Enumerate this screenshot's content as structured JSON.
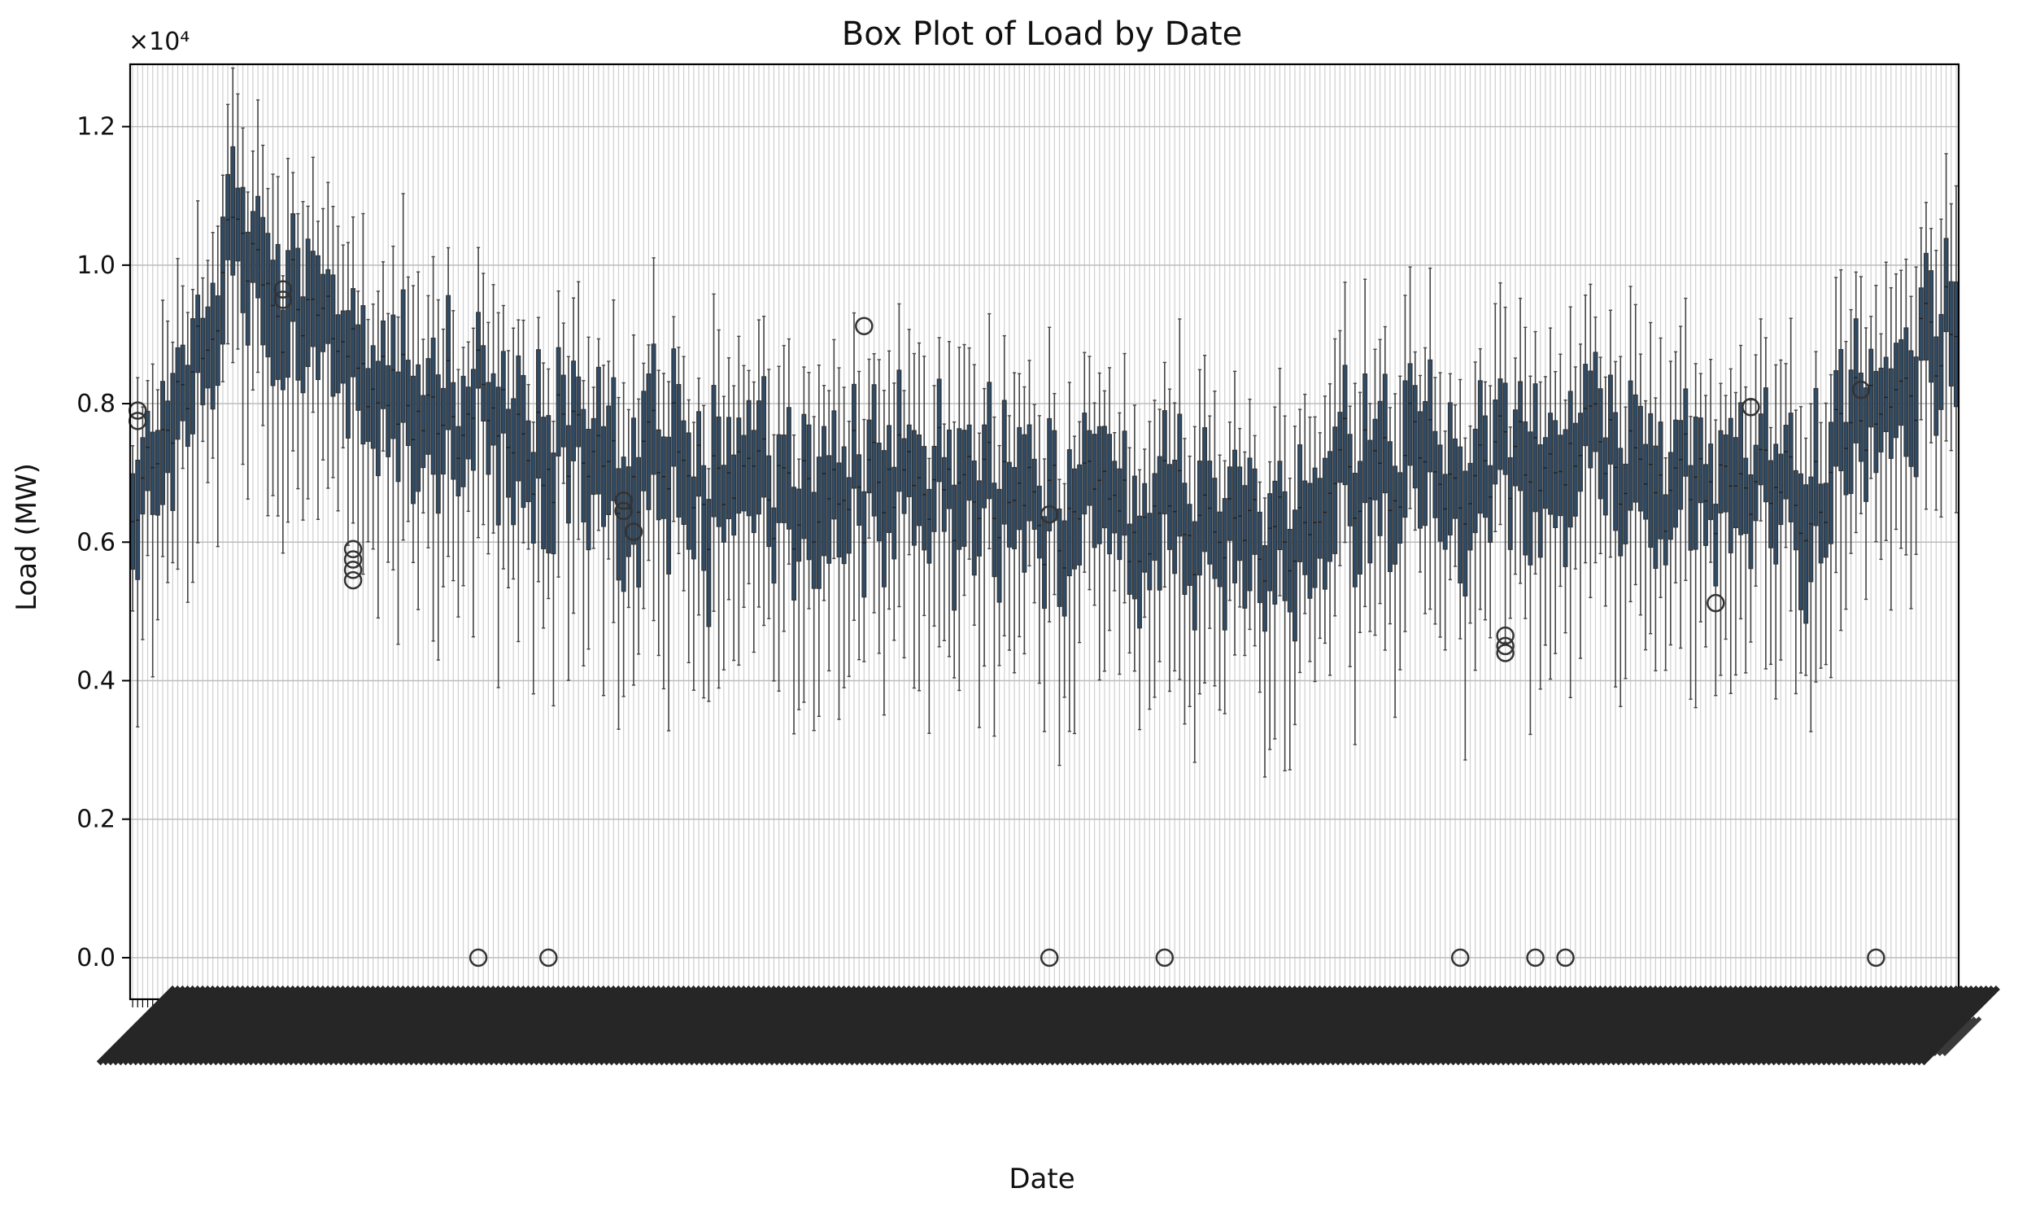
{
  "chart_data": {
    "type": "box",
    "title": "Box Plot of Load by Date",
    "xlabel": "Date",
    "ylabel": "Load (MW)",
    "y_multiplier": "×10⁴",
    "yticks": [
      0.0,
      0.2,
      0.4,
      0.6,
      0.8,
      1.0,
      1.2
    ],
    "ylim": [
      -0.06,
      1.29
    ],
    "grid": true,
    "box_color": "#2f4b66",
    "outlier_color": "#333333",
    "group_count": 365,
    "median_profile": [
      [
        0,
        0.63
      ],
      [
        6,
        0.75
      ],
      [
        12,
        0.88
      ],
      [
        20,
        1.02
      ],
      [
        28,
        0.98
      ],
      [
        38,
        0.92
      ],
      [
        46,
        0.86
      ],
      [
        56,
        0.78
      ],
      [
        66,
        0.82
      ],
      [
        76,
        0.76
      ],
      [
        86,
        0.74
      ],
      [
        96,
        0.72
      ],
      [
        106,
        0.7
      ],
      [
        116,
        0.69
      ],
      [
        126,
        0.67
      ],
      [
        136,
        0.66
      ],
      [
        146,
        0.68
      ],
      [
        156,
        0.7
      ],
      [
        166,
        0.68
      ],
      [
        176,
        0.66
      ],
      [
        186,
        0.65
      ],
      [
        196,
        0.64
      ],
      [
        206,
        0.63
      ],
      [
        216,
        0.62
      ],
      [
        226,
        0.6
      ],
      [
        236,
        0.66
      ],
      [
        246,
        0.7
      ],
      [
        256,
        0.72
      ],
      [
        266,
        0.71
      ],
      [
        276,
        0.7
      ],
      [
        286,
        0.73
      ],
      [
        296,
        0.72
      ],
      [
        306,
        0.69
      ],
      [
        316,
        0.66
      ],
      [
        326,
        0.67
      ],
      [
        336,
        0.7
      ],
      [
        346,
        0.76
      ],
      [
        354,
        0.84
      ],
      [
        364,
        0.9
      ]
    ],
    "outliers": [
      {
        "group": 1,
        "y": 0.775
      },
      {
        "group": 1,
        "y": 0.79
      },
      {
        "group": 30,
        "y": 0.965
      },
      {
        "group": 30,
        "y": 0.95
      },
      {
        "group": 44,
        "y": 0.59
      },
      {
        "group": 44,
        "y": 0.575
      },
      {
        "group": 44,
        "y": 0.56
      },
      {
        "group": 44,
        "y": 0.545
      },
      {
        "group": 69,
        "y": 0.0
      },
      {
        "group": 83,
        "y": 0.0
      },
      {
        "group": 98,
        "y": 0.66
      },
      {
        "group": 98,
        "y": 0.645
      },
      {
        "group": 100,
        "y": 0.615
      },
      {
        "group": 146,
        "y": 0.912
      },
      {
        "group": 183,
        "y": 0.0
      },
      {
        "group": 183,
        "y": 0.64
      },
      {
        "group": 206,
        "y": 0.0
      },
      {
        "group": 265,
        "y": 0.0
      },
      {
        "group": 274,
        "y": 0.465
      },
      {
        "group": 274,
        "y": 0.45
      },
      {
        "group": 274,
        "y": 0.44
      },
      {
        "group": 280,
        "y": 0.0
      },
      {
        "group": 286,
        "y": 0.0
      },
      {
        "group": 316,
        "y": 0.512
      },
      {
        "group": 323,
        "y": 0.795
      },
      {
        "group": 345,
        "y": 0.82
      },
      {
        "group": 348,
        "y": 0.0
      }
    ]
  }
}
